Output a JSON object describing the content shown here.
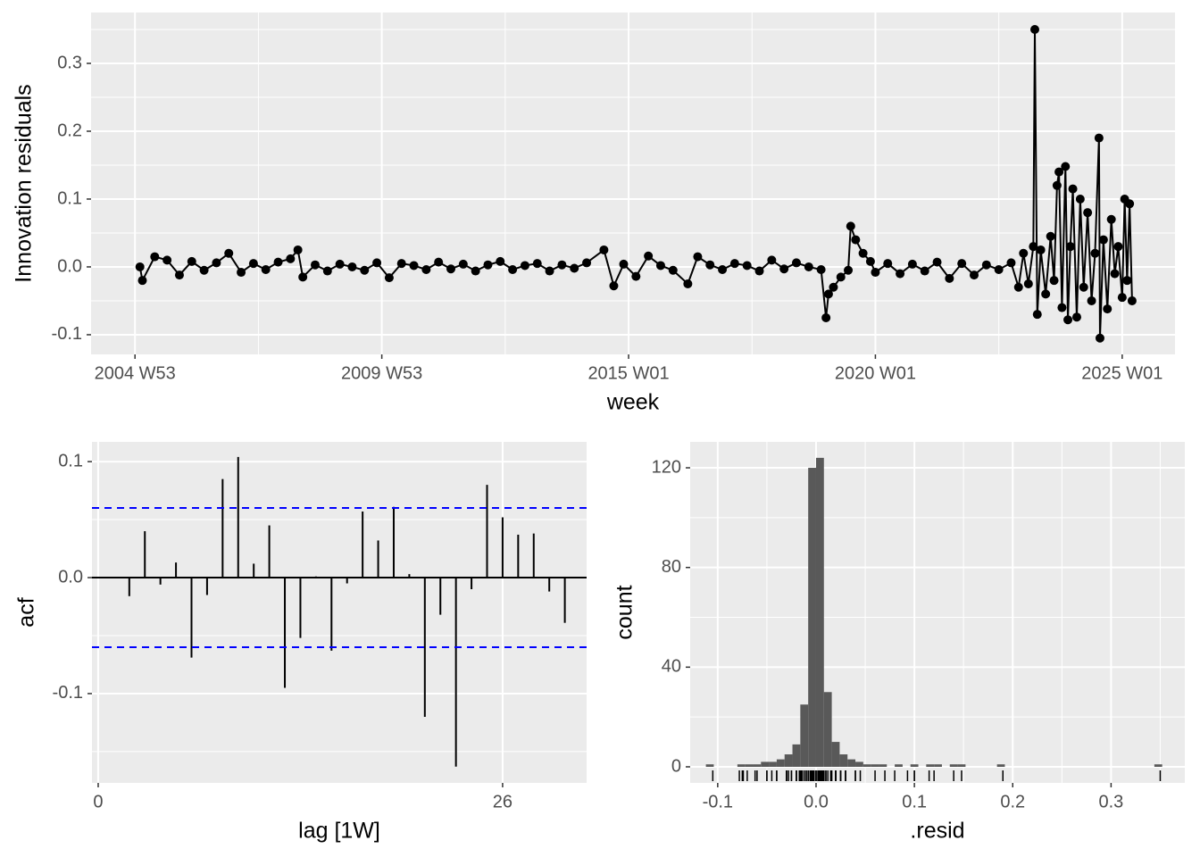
{
  "chart_data": [
    {
      "type": "line",
      "ylabel": "Innovation residuals",
      "xlabel": "week",
      "color": "#000000",
      "grid": true,
      "x": [
        2005.1,
        2005.15,
        2005.4,
        2005.65,
        2005.9,
        2006.15,
        2006.4,
        2006.65,
        2006.9,
        2007.15,
        2007.4,
        2007.65,
        2007.9,
        2008.15,
        2008.3,
        2008.4,
        2008.65,
        2008.9,
        2009.15,
        2009.4,
        2009.65,
        2009.9,
        2010.15,
        2010.4,
        2010.65,
        2010.9,
        2011.15,
        2011.4,
        2011.65,
        2011.9,
        2012.15,
        2012.4,
        2012.65,
        2012.9,
        2013.15,
        2013.4,
        2013.65,
        2013.9,
        2014.15,
        2014.5,
        2014.7,
        2014.9,
        2015.15,
        2015.4,
        2015.65,
        2015.9,
        2016.2,
        2016.4,
        2016.65,
        2016.9,
        2017.15,
        2017.4,
        2017.65,
        2017.9,
        2018.15,
        2018.4,
        2018.65,
        2018.9,
        2019.0,
        2019.05,
        2019.15,
        2019.3,
        2019.45,
        2019.5,
        2019.6,
        2019.75,
        2019.9,
        2020.0,
        2020.25,
        2020.5,
        2020.75,
        2021.0,
        2021.25,
        2021.5,
        2021.75,
        2022.0,
        2022.25,
        2022.5,
        2022.75,
        2022.9,
        2023.0,
        2023.1,
        2023.2,
        2023.23,
        2023.28,
        2023.35,
        2023.45,
        2023.55,
        2023.62,
        2023.68,
        2023.72,
        2023.78,
        2023.85,
        2023.9,
        2023.95,
        2024.0,
        2024.08,
        2024.15,
        2024.22,
        2024.3,
        2024.38,
        2024.45,
        2024.53,
        2024.55,
        2024.62,
        2024.7,
        2024.78,
        2024.85,
        2024.92,
        2025.0,
        2025.05,
        2025.1,
        2025.15,
        2025.2
      ],
      "values": [
        0.0,
        -0.02,
        0.015,
        0.01,
        -0.012,
        0.008,
        -0.005,
        0.006,
        0.02,
        -0.008,
        0.005,
        -0.004,
        0.007,
        0.012,
        0.025,
        -0.015,
        0.003,
        -0.006,
        0.004,
        0.0,
        -0.005,
        0.006,
        -0.016,
        0.005,
        0.002,
        -0.004,
        0.007,
        -0.003,
        0.004,
        -0.006,
        0.003,
        0.008,
        -0.004,
        0.002,
        0.005,
        -0.006,
        0.003,
        -0.002,
        0.006,
        0.025,
        -0.028,
        0.004,
        -0.014,
        0.016,
        0.002,
        -0.005,
        -0.025,
        0.015,
        0.003,
        -0.004,
        0.005,
        0.002,
        -0.006,
        0.01,
        -0.003,
        0.006,
        0.0,
        -0.004,
        -0.075,
        -0.04,
        -0.03,
        -0.015,
        -0.005,
        0.06,
        0.04,
        0.02,
        0.008,
        -0.008,
        0.005,
        -0.01,
        0.004,
        -0.006,
        0.007,
        -0.017,
        0.005,
        -0.012,
        0.003,
        -0.004,
        0.006,
        -0.03,
        0.02,
        -0.025,
        0.03,
        0.35,
        -0.07,
        0.025,
        -0.04,
        0.045,
        -0.02,
        0.12,
        0.14,
        -0.06,
        0.148,
        -0.078,
        0.03,
        0.115,
        -0.074,
        0.1,
        -0.03,
        0.08,
        -0.05,
        0.02,
        0.19,
        -0.105,
        0.04,
        -0.062,
        0.07,
        -0.01,
        0.03,
        -0.045,
        0.1,
        -0.02,
        0.093,
        -0.05
      ],
      "xlim": [
        2004.11,
        2026.07
      ],
      "xticks": [
        {
          "value": 2005.0,
          "label": "2004 W53"
        },
        {
          "value": 2010.0,
          "label": "2009 W53"
        },
        {
          "value": 2015.0,
          "label": "2015 W01"
        },
        {
          "value": 2020.0,
          "label": "2020 W01"
        },
        {
          "value": 2025.0,
          "label": "2025 W01"
        }
      ],
      "ylim": [
        -0.129,
        0.375
      ],
      "yticks": [
        -0.1,
        {
          "value": 0,
          "label": "0.0"
        },
        0.1,
        0.2,
        0.3
      ]
    },
    {
      "type": "acf",
      "ylabel": "acf",
      "xlabel": "lag [1W]",
      "color": "#000000",
      "ci": 0.06,
      "ci_color": "#0000ff",
      "grid": true,
      "x": [
        1,
        2,
        3,
        4,
        5,
        6,
        7,
        8,
        9,
        10,
        11,
        12,
        13,
        14,
        15,
        16,
        17,
        18,
        19,
        20,
        21,
        22,
        23,
        24,
        25,
        26,
        27,
        28,
        29,
        30
      ],
      "values": [
        0.0,
        -0.016,
        0.04,
        -0.006,
        0.013,
        -0.069,
        -0.015,
        0.085,
        0.104,
        0.012,
        0.045,
        -0.095,
        -0.052,
        0.001,
        -0.063,
        -0.005,
        0.057,
        0.032,
        0.061,
        0.003,
        -0.12,
        -0.032,
        -0.163,
        -0.01,
        0.08,
        0.052,
        0.037,
        0.038,
        -0.012,
        -0.039
      ],
      "xlim": [
        -0.4,
        31.4
      ],
      "xticks": [
        0,
        26
      ],
      "ylim": [
        -0.177,
        0.117
      ],
      "yticks": [
        -0.1,
        {
          "value": 0,
          "label": "0.0"
        },
        0.1
      ]
    },
    {
      "type": "histogram",
      "ylabel": "count",
      "xlabel": ".resid",
      "color": "#595959",
      "rug_color": "#000000",
      "grid": true,
      "bins": [
        -0.112,
        -0.104,
        -0.096,
        -0.088,
        -0.08,
        -0.072,
        -0.064,
        -0.056,
        -0.048,
        -0.04,
        -0.032,
        -0.024,
        -0.016,
        -0.008,
        0,
        0.008,
        0.016,
        0.024,
        0.032,
        0.04,
        0.048,
        0.056,
        0.064,
        0.072,
        0.08,
        0.088,
        0.096,
        0.104,
        0.112,
        0.12,
        0.128,
        0.136,
        0.144,
        0.152,
        0.16,
        0.168,
        0.176,
        0.184,
        0.192,
        0.2,
        0.208,
        0.216,
        0.224,
        0.232,
        0.24,
        0.248,
        0.256,
        0.264,
        0.272,
        0.28,
        0.288,
        0.296,
        0.304,
        0.312,
        0.32,
        0.328,
        0.336,
        0.344,
        0.352,
        0.36
      ],
      "counts": [
        1,
        0,
        0,
        0,
        1,
        1,
        1,
        2,
        2,
        3,
        5,
        9,
        25,
        120,
        124,
        30,
        10,
        5,
        3,
        2,
        1,
        1,
        1,
        0,
        1,
        0,
        1,
        0,
        1,
        1,
        0,
        1,
        1,
        0,
        0,
        0,
        0,
        1,
        0,
        0,
        0,
        0,
        0,
        0,
        0,
        0,
        0,
        0,
        0,
        0,
        0,
        0,
        0,
        0,
        0,
        0,
        0,
        1,
        0
      ],
      "xlim": [
        -0.128,
        0.375
      ],
      "xticks": [
        -0.1,
        {
          "value": 0,
          "label": "0.0"
        },
        0.1,
        0.2,
        0.3
      ],
      "ylim": [
        -6.45,
        130.4
      ],
      "yticks": [
        0,
        40,
        80,
        120
      ]
    }
  ]
}
